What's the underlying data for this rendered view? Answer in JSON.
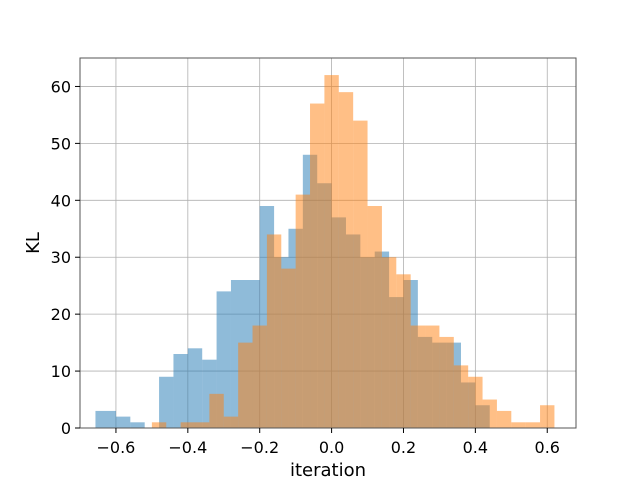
{
  "chart_data": {
    "type": "bar",
    "subtype": "overlapping-histogram",
    "title": "",
    "xlabel": "iteration",
    "ylabel": "KL",
    "xlim": [
      -0.7,
      0.68
    ],
    "ylim": [
      0,
      65
    ],
    "xticks": [
      -0.6,
      -0.4,
      -0.2,
      0.0,
      0.2,
      0.4,
      0.6
    ],
    "xtick_labels": [
      "−0.6",
      "−0.4",
      "−0.2",
      "0.0",
      "0.2",
      "0.4",
      "0.6"
    ],
    "yticks": [
      0,
      10,
      20,
      30,
      40,
      50,
      60
    ],
    "ytick_labels": [
      "0",
      "10",
      "20",
      "30",
      "40",
      "50",
      "60"
    ],
    "grid": true,
    "legend": null,
    "series": [
      {
        "color": "#1f77b4",
        "opacity": 0.5,
        "bin_edges": [
          -0.657,
          -0.6,
          -0.56,
          -0.52,
          -0.48,
          -0.44,
          -0.4,
          -0.36,
          -0.32,
          -0.28,
          -0.2,
          -0.16,
          -0.12,
          -0.08,
          -0.04,
          0.0,
          0.04,
          0.08,
          0.12,
          0.16,
          0.2,
          0.24,
          0.28,
          0.32,
          0.36,
          0.4,
          0.44
        ],
        "counts": [
          3,
          2,
          1,
          0,
          9,
          13,
          14,
          12,
          24,
          26,
          39,
          30,
          35,
          48,
          43,
          37,
          34,
          30,
          31,
          23,
          26,
          16,
          15,
          15,
          8,
          4
        ]
      },
      {
        "color": "#ff7f0e",
        "opacity": 0.5,
        "bin_edges": [
          -0.5,
          -0.46,
          -0.42,
          -0.38,
          -0.34,
          -0.3,
          -0.26,
          -0.22,
          -0.18,
          -0.14,
          -0.1,
          -0.06,
          -0.02,
          0.02,
          0.06,
          0.1,
          0.14,
          0.18,
          0.22,
          0.26,
          0.3,
          0.34,
          0.38,
          0.42,
          0.46,
          0.5,
          0.54,
          0.58,
          0.62
        ],
        "counts": [
          1,
          0,
          1,
          1,
          6,
          2,
          15,
          18,
          34,
          28,
          41,
          57,
          62,
          59,
          54,
          39,
          30,
          27,
          18,
          18,
          16,
          11,
          9,
          5,
          3,
          1,
          1,
          4
        ]
      }
    ]
  }
}
